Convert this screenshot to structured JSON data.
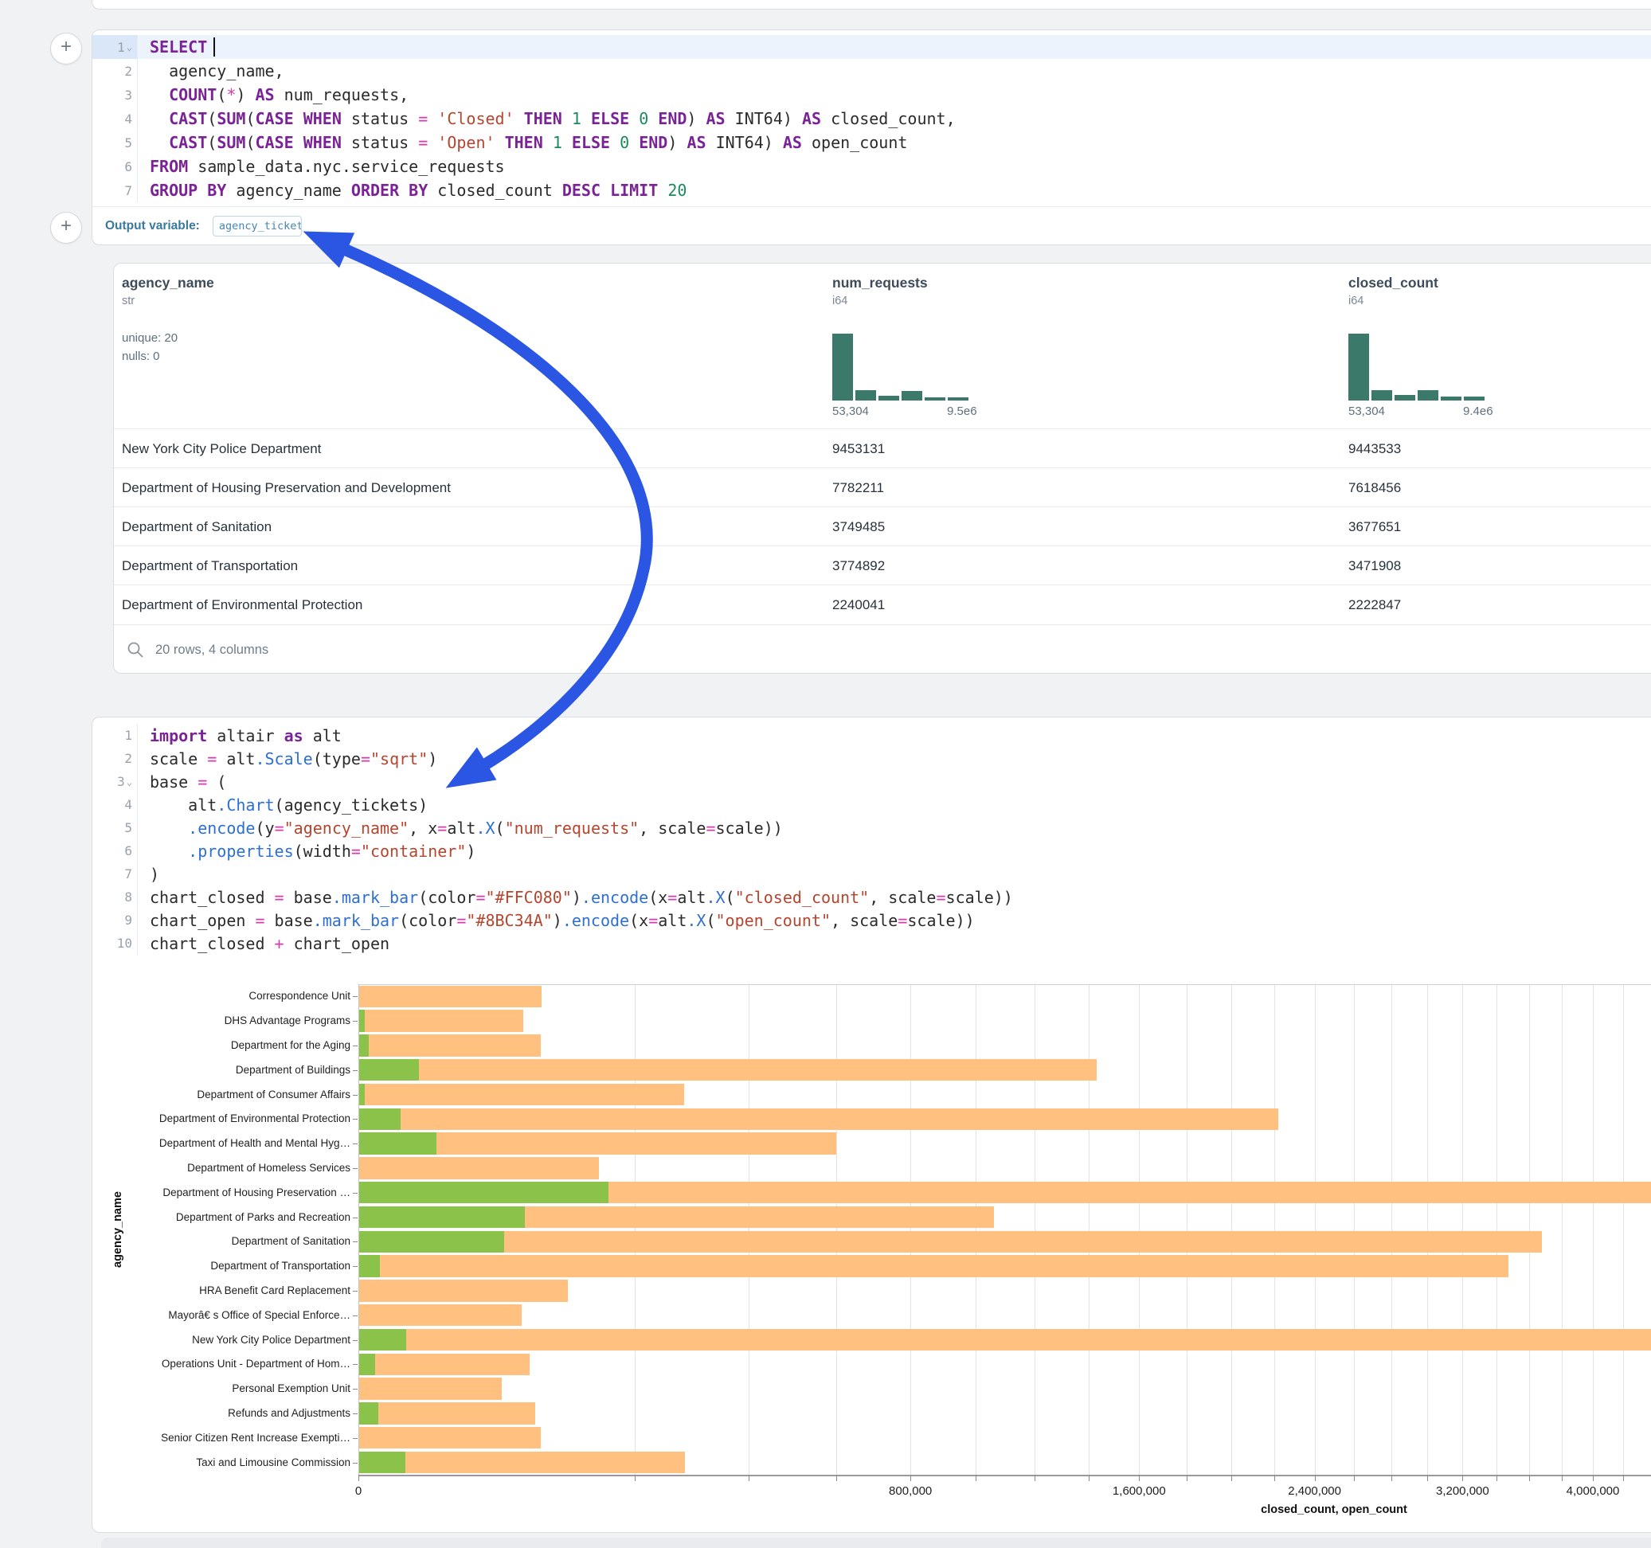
{
  "colors": {
    "page_bg": "#f1f2f4",
    "arrow": "#2a56e3",
    "hist_bar": "#3b7a6a",
    "closed_bar": "#FFC080",
    "open_bar": "#8BC34A"
  },
  "add_buttons": {
    "top": "+",
    "middle": "+"
  },
  "sql_cell": {
    "lines": [
      {
        "n": "1",
        "chevron": true,
        "active": true,
        "cursor": true,
        "t": [
          [
            "SELECT",
            "k"
          ]
        ]
      },
      {
        "n": "2",
        "t": [
          [
            "  agency_name,",
            "d"
          ]
        ]
      },
      {
        "n": "3",
        "t": [
          [
            "  ",
            "d"
          ],
          [
            "COUNT",
            "k"
          ],
          [
            "(",
            "d"
          ],
          [
            "*",
            "o"
          ],
          [
            ") ",
            "d"
          ],
          [
            "AS",
            "k"
          ],
          [
            " num_requests,",
            "d"
          ]
        ]
      },
      {
        "n": "4",
        "t": [
          [
            "  ",
            "d"
          ],
          [
            "CAST",
            "k"
          ],
          [
            "(",
            "d"
          ],
          [
            "SUM",
            "k"
          ],
          [
            "(",
            "d"
          ],
          [
            "CASE",
            "k"
          ],
          [
            " ",
            "d"
          ],
          [
            "WHEN",
            "k"
          ],
          [
            " status ",
            "d"
          ],
          [
            "=",
            "o"
          ],
          [
            " ",
            "d"
          ],
          [
            "'Closed'",
            "s"
          ],
          [
            " ",
            "d"
          ],
          [
            "THEN",
            "k"
          ],
          [
            " ",
            "d"
          ],
          [
            "1",
            "n"
          ],
          [
            " ",
            "d"
          ],
          [
            "ELSE",
            "k"
          ],
          [
            " ",
            "d"
          ],
          [
            "0",
            "n"
          ],
          [
            " ",
            "d"
          ],
          [
            "END",
            "k"
          ],
          [
            ") ",
            "d"
          ],
          [
            "AS",
            "k"
          ],
          [
            " INT64) ",
            "d"
          ],
          [
            "AS",
            "k"
          ],
          [
            " closed_count,",
            "d"
          ]
        ]
      },
      {
        "n": "5",
        "t": [
          [
            "  ",
            "d"
          ],
          [
            "CAST",
            "k"
          ],
          [
            "(",
            "d"
          ],
          [
            "SUM",
            "k"
          ],
          [
            "(",
            "d"
          ],
          [
            "CASE",
            "k"
          ],
          [
            " ",
            "d"
          ],
          [
            "WHEN",
            "k"
          ],
          [
            " status ",
            "d"
          ],
          [
            "=",
            "o"
          ],
          [
            " ",
            "d"
          ],
          [
            "'Open'",
            "s"
          ],
          [
            " ",
            "d"
          ],
          [
            "THEN",
            "k"
          ],
          [
            " ",
            "d"
          ],
          [
            "1",
            "n"
          ],
          [
            " ",
            "d"
          ],
          [
            "ELSE",
            "k"
          ],
          [
            " ",
            "d"
          ],
          [
            "0",
            "n"
          ],
          [
            " ",
            "d"
          ],
          [
            "END",
            "k"
          ],
          [
            ") ",
            "d"
          ],
          [
            "AS",
            "k"
          ],
          [
            " INT64) ",
            "d"
          ],
          [
            "AS",
            "k"
          ],
          [
            " open_count",
            "d"
          ]
        ]
      },
      {
        "n": "6",
        "t": [
          [
            "FROM",
            "k"
          ],
          [
            " sample_data.nyc.service_requests",
            "d"
          ]
        ]
      },
      {
        "n": "7",
        "t": [
          [
            "GROUP",
            "k"
          ],
          [
            " ",
            "d"
          ],
          [
            "BY",
            "k"
          ],
          [
            " agency_name ",
            "d"
          ],
          [
            "ORDER",
            "k"
          ],
          [
            " ",
            "d"
          ],
          [
            "BY",
            "k"
          ],
          [
            " closed_count ",
            "d"
          ],
          [
            "DESC",
            "k"
          ],
          [
            " ",
            "d"
          ],
          [
            "LIMIT",
            "k"
          ],
          [
            " ",
            "d"
          ],
          [
            "20",
            "n"
          ]
        ]
      }
    ]
  },
  "output_bar": {
    "label": "Output variable:",
    "variable": "agency_tickets"
  },
  "table": {
    "columns": [
      {
        "name": "agency_name",
        "type": "str",
        "stats": [
          "unique: 20",
          "nulls: 0"
        ]
      },
      {
        "name": "num_requests",
        "type": "i64",
        "hist": [
          100,
          15,
          7,
          14,
          5,
          5
        ],
        "min": "53,304",
        "max": "9.5e6"
      },
      {
        "name": "closed_count",
        "type": "i64",
        "hist": [
          100,
          15,
          8,
          15,
          6,
          6
        ],
        "min": "53,304",
        "max": "9.4e6"
      }
    ],
    "rows": [
      [
        "New York City Police Department",
        "9453131",
        "9443533"
      ],
      [
        "Department of Housing Preservation and Development",
        "7782211",
        "7618456"
      ],
      [
        "Department of Sanitation",
        "3749485",
        "3677651"
      ],
      [
        "Department of Transportation",
        "3774892",
        "3471908"
      ],
      [
        "Department of Environmental Protection",
        "2240041",
        "2222847"
      ]
    ],
    "footer": "20 rows, 4 columns"
  },
  "py_cell": {
    "lines": [
      {
        "n": "1",
        "t": [
          [
            "import",
            "k"
          ],
          [
            " altair ",
            "d"
          ],
          [
            "as",
            "k"
          ],
          [
            " alt",
            "d"
          ]
        ]
      },
      {
        "n": "2",
        "t": [
          [
            "scale ",
            "d"
          ],
          [
            "=",
            "o"
          ],
          [
            " alt",
            "d"
          ],
          [
            ".Scale",
            "c"
          ],
          [
            "(type",
            "d"
          ],
          [
            "=",
            "o"
          ],
          [
            "\"sqrt\"",
            "s"
          ],
          [
            ")",
            "d"
          ]
        ]
      },
      {
        "n": "3",
        "chevron": true,
        "t": [
          [
            "base ",
            "d"
          ],
          [
            "=",
            "o"
          ],
          [
            " (",
            "d"
          ]
        ]
      },
      {
        "n": "4",
        "t": [
          [
            "    alt",
            "d"
          ],
          [
            ".Chart",
            "c"
          ],
          [
            "(agency_tickets)",
            "d"
          ]
        ]
      },
      {
        "n": "5",
        "t": [
          [
            "    ",
            "d"
          ],
          [
            ".encode",
            "c"
          ],
          [
            "(y",
            "d"
          ],
          [
            "=",
            "o"
          ],
          [
            "\"agency_name\"",
            "s"
          ],
          [
            ", x",
            "d"
          ],
          [
            "=",
            "o"
          ],
          [
            "alt",
            "d"
          ],
          [
            ".X",
            "c"
          ],
          [
            "(",
            "d"
          ],
          [
            "\"num_requests\"",
            "s"
          ],
          [
            ", scale",
            "d"
          ],
          [
            "=",
            "o"
          ],
          [
            "scale))",
            "d"
          ]
        ]
      },
      {
        "n": "6",
        "t": [
          [
            "    ",
            "d"
          ],
          [
            ".properties",
            "c"
          ],
          [
            "(width",
            "d"
          ],
          [
            "=",
            "o"
          ],
          [
            "\"container\"",
            "s"
          ],
          [
            ")",
            "d"
          ]
        ]
      },
      {
        "n": "7",
        "t": [
          [
            ")",
            "d"
          ]
        ]
      },
      {
        "n": "8",
        "t": [
          [
            "chart_closed ",
            "d"
          ],
          [
            "=",
            "o"
          ],
          [
            " base",
            "d"
          ],
          [
            ".mark_bar",
            "c"
          ],
          [
            "(color",
            "d"
          ],
          [
            "=",
            "o"
          ],
          [
            "\"#FFC080\"",
            "s"
          ],
          [
            ")",
            "d"
          ],
          [
            ".encode",
            "c"
          ],
          [
            "(x",
            "d"
          ],
          [
            "=",
            "o"
          ],
          [
            "alt",
            "d"
          ],
          [
            ".X",
            "c"
          ],
          [
            "(",
            "d"
          ],
          [
            "\"closed_count\"",
            "s"
          ],
          [
            ", scale",
            "d"
          ],
          [
            "=",
            "o"
          ],
          [
            "scale))",
            "d"
          ]
        ]
      },
      {
        "n": "9",
        "t": [
          [
            "chart_open ",
            "d"
          ],
          [
            "=",
            "o"
          ],
          [
            " base",
            "d"
          ],
          [
            ".mark_bar",
            "c"
          ],
          [
            "(color",
            "d"
          ],
          [
            "=",
            "o"
          ],
          [
            "\"#8BC34A\"",
            "s"
          ],
          [
            ")",
            "d"
          ],
          [
            ".encode",
            "c"
          ],
          [
            "(x",
            "d"
          ],
          [
            "=",
            "o"
          ],
          [
            "alt",
            "d"
          ],
          [
            ".X",
            "c"
          ],
          [
            "(",
            "d"
          ],
          [
            "\"open_count\"",
            "s"
          ],
          [
            ", scale",
            "d"
          ],
          [
            "=",
            "o"
          ],
          [
            "scale))",
            "d"
          ]
        ]
      },
      {
        "n": "10",
        "t": [
          [
            "chart_closed ",
            "d"
          ],
          [
            "+",
            "o"
          ],
          [
            " chart_open",
            "d"
          ]
        ]
      }
    ]
  },
  "chart_data": {
    "type": "bar",
    "orientation": "horizontal",
    "x_scale": "sqrt",
    "xlabel": "closed_count, open_count",
    "ylabel": "agency_name",
    "x_ticks": [
      0,
      800000,
      1600000,
      2400000,
      3200000,
      4000000
    ],
    "grid_step": 200000,
    "categories": [
      "Correspondence Unit",
      "DHS Advantage Programs",
      "Department for the Aging",
      "Department of Buildings",
      "Department of Consumer Affairs",
      "Department of Environmental Protection",
      "Department of Health and Mental Hyg…",
      "Department of Homeless Services",
      "Department of Housing Preservation …",
      "Department of Parks and Recreation",
      "Department of Sanitation",
      "Department of Transportation",
      "HRA Benefit Card Replacement",
      "Mayorâ€ s Office of Special Enforce…",
      "New York City Police Department",
      "Operations Unit - Department of Hom…",
      "Personal Exemption Unit",
      "Refunds and Adjustments",
      "Senior Citizen Rent Increase Exempti…",
      "Taxi and Limousine Commission"
    ],
    "series": [
      {
        "name": "closed_count",
        "color": "#FFC080",
        "values": [
          88000,
          71000,
          87000,
          1430000,
          278000,
          2222847,
          600000,
          152000,
          7618456,
          1060000,
          3677651,
          3471908,
          115000,
          70000,
          9443533,
          77000,
          54000,
          82000,
          87000,
          280000
        ]
      },
      {
        "name": "open_count",
        "color": "#8BC34A",
        "values": [
          0,
          100,
          300,
          9500,
          100,
          4600,
          16000,
          0,
          164000,
          73000,
          56000,
          1200,
          0,
          0,
          6000,
          700,
          0,
          1000,
          0,
          5800
        ]
      }
    ]
  }
}
